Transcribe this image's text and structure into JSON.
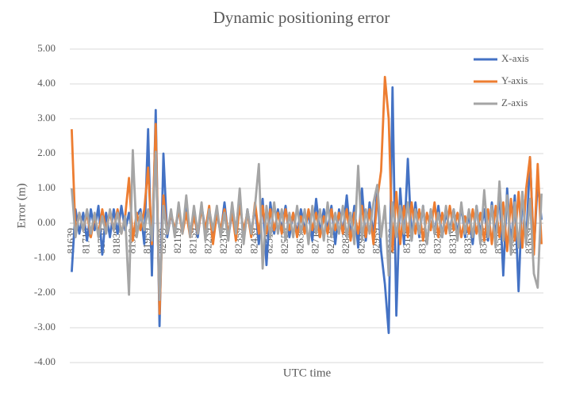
{
  "chart_data": {
    "type": "line",
    "title": "Dynamic positioning error",
    "x_label": "UTC time",
    "y_label": "Error (m)",
    "ylim": [
      -4,
      5
    ],
    "yticks": [
      {
        "value": -4,
        "label": "-4.00"
      },
      {
        "value": -3,
        "label": "-3.00"
      },
      {
        "value": -2,
        "label": "-2.00"
      },
      {
        "value": -1,
        "label": "-1.00"
      },
      {
        "value": 0,
        "label": "0.00"
      },
      {
        "value": 1,
        "label": "1.00"
      },
      {
        "value": 2,
        "label": "2.00"
      },
      {
        "value": 3,
        "label": "3.00"
      },
      {
        "value": 4,
        "label": "4.00"
      },
      {
        "value": 5,
        "label": "5.00"
      }
    ],
    "grid": true,
    "legend": "top-right",
    "categories": [
      "81639",
      null,
      null,
      null,
      "81719",
      null,
      null,
      null,
      "81759",
      null,
      null,
      null,
      "81839",
      null,
      null,
      null,
      "81919",
      null,
      null,
      null,
      "81959",
      null,
      null,
      null,
      "82039",
      null,
      null,
      null,
      "82119",
      null,
      null,
      null,
      "82159",
      null,
      null,
      null,
      "82239",
      null,
      null,
      null,
      "82319",
      null,
      null,
      null,
      "82359",
      null,
      null,
      null,
      "82439",
      null,
      null,
      null,
      "82519",
      null,
      null,
      null,
      "82559",
      null,
      null,
      null,
      "82639",
      null,
      null,
      null,
      "82719",
      null,
      null,
      null,
      "82759",
      null,
      null,
      null,
      "82839",
      null,
      null,
      null,
      "82919",
      null,
      null,
      null,
      "82959",
      null,
      null,
      null,
      "83039",
      null,
      null,
      null,
      "83119",
      null,
      null,
      null,
      "83159",
      null,
      null,
      null,
      "83239",
      null,
      null,
      null,
      "83319",
      null,
      null,
      null,
      "83359",
      null,
      null,
      null,
      "83439",
      null,
      null,
      null,
      "83519",
      null,
      null,
      null,
      "83559",
      null,
      null,
      null,
      "83639",
      null,
      null,
      null
    ],
    "series": [
      {
        "name": "X-axis",
        "color": "#4472c4",
        "values": [
          -1.4,
          0.4,
          -0.3,
          0.3,
          -0.5,
          0.4,
          -0.2,
          0.5,
          -0.9,
          0.3,
          -0.4,
          0.4,
          -0.3,
          0.5,
          -0.2,
          0.3,
          -0.4,
          0.2,
          0.4,
          -0.6,
          2.7,
          -1.5,
          3.25,
          -2.95,
          2.0,
          -0.4,
          0.3,
          -0.3,
          0.4,
          -0.2,
          0.5,
          -0.3,
          0.3,
          -0.4,
          0.5,
          -0.2,
          0.4,
          -0.5,
          0.3,
          -0.3,
          0.6,
          -0.4,
          0.3,
          -0.2,
          0.8,
          -0.5,
          0.4,
          -0.3,
          0.5,
          -0.6,
          0.7,
          -1.2,
          0.6,
          -0.3,
          0.4,
          -0.2,
          0.5,
          -0.4,
          0.3,
          -0.3,
          0.4,
          -0.2,
          0.3,
          -0.5,
          0.7,
          -0.3,
          0.4,
          -0.2,
          0.5,
          -0.6,
          0.4,
          -0.3,
          0.8,
          -0.4,
          0.5,
          -0.7,
          1.0,
          -0.5,
          0.6,
          -0.4,
          1.0,
          -0.8,
          -1.75,
          -3.15,
          3.9,
          -2.65,
          1.0,
          -0.6,
          1.85,
          -0.5,
          0.6,
          -0.4,
          0.5,
          -0.6,
          0.4,
          -0.3,
          0.5,
          -0.4,
          0.3,
          -0.2,
          0.4,
          -0.3,
          0.5,
          -0.4,
          0.3,
          -0.6,
          0.5,
          -0.3,
          0.4,
          -0.5,
          0.6,
          -0.4,
          0.9,
          -1.5,
          1.0,
          -0.7,
          0.8,
          -1.95,
          0.9,
          -0.6,
          1.9,
          -0.8,
          1.2,
          0.1
        ]
      },
      {
        "name": "Y-axis",
        "color": "#ed7d31",
        "values": [
          2.7,
          -0.3,
          0.3,
          -0.2,
          0.3,
          -0.4,
          0.2,
          -0.3,
          0.4,
          -0.2,
          0.3,
          -0.2,
          0.4,
          -0.3,
          0.2,
          1.3,
          -0.5,
          0.3,
          -0.2,
          0.4,
          1.6,
          -0.6,
          2.85,
          -2.6,
          0.8,
          -0.3,
          0.3,
          -0.2,
          0.4,
          -0.3,
          0.3,
          -0.4,
          0.2,
          -0.3,
          0.4,
          -0.2,
          0.5,
          -0.6,
          0.3,
          -0.2,
          0.4,
          -0.3,
          0.3,
          -0.5,
          0.5,
          -0.2,
          0.3,
          -0.4,
          0.6,
          -0.3,
          0.5,
          -0.3,
          0.4,
          -0.2,
          0.3,
          -0.3,
          0.4,
          -0.2,
          0.3,
          -0.4,
          0.2,
          -0.3,
          0.4,
          -0.2,
          0.3,
          -0.4,
          0.2,
          -0.3,
          0.4,
          -0.2,
          0.3,
          -0.3,
          0.4,
          -0.5,
          0.3,
          -0.3,
          0.5,
          -0.4,
          0.4,
          -0.6,
          0.7,
          1.5,
          4.2,
          3.0,
          -0.8,
          0.9,
          -0.6,
          0.5,
          -0.4,
          0.6,
          -0.3,
          0.4,
          -0.5,
          0.3,
          -0.2,
          0.6,
          -0.4,
          0.3,
          -0.3,
          0.5,
          -0.2,
          0.3,
          -0.4,
          0.2,
          -0.3,
          0.4,
          -0.3,
          0.3,
          -0.5,
          0.4,
          -0.6,
          0.5,
          -0.4,
          0.6,
          -0.8,
          0.7,
          -0.5,
          0.9,
          -0.7,
          1.0,
          1.9,
          -0.9,
          1.7,
          -0.6
        ]
      },
      {
        "name": "Z-axis",
        "color": "#a5a5a5",
        "values": [
          1.0,
          -0.4,
          0.3,
          -0.2,
          0.4,
          -0.3,
          0.3,
          -0.4,
          0.2,
          -0.3,
          0.4,
          -0.2,
          0.3,
          -0.3,
          0.2,
          -2.05,
          2.1,
          -0.4,
          0.3,
          -0.2,
          0.4,
          -0.5,
          2.05,
          -2.2,
          0.5,
          -0.3,
          0.4,
          -0.4,
          0.6,
          -0.3,
          0.8,
          -0.4,
          0.5,
          -0.3,
          0.6,
          -0.5,
          0.4,
          -0.2,
          0.5,
          -0.4,
          0.3,
          -0.5,
          0.6,
          -0.3,
          1.0,
          -0.6,
          0.4,
          -0.3,
          0.5,
          1.7,
          -1.3,
          0.5,
          -0.4,
          0.6,
          -0.3,
          0.4,
          -0.5,
          0.3,
          -0.4,
          0.5,
          -0.3,
          0.4,
          -0.6,
          0.5,
          -0.3,
          0.4,
          -0.5,
          0.6,
          -0.4,
          0.3,
          -0.3,
          0.5,
          -0.4,
          0.3,
          -0.6,
          1.65,
          -0.5,
          0.4,
          -0.3,
          0.6,
          1.1,
          -0.4,
          0.5,
          -1.5,
          0.6,
          -0.4,
          0.5,
          -0.3,
          0.6,
          -0.5,
          0.4,
          -0.3,
          0.5,
          -0.6,
          0.4,
          -0.3,
          0.3,
          -0.4,
          0.5,
          -0.3,
          0.4,
          -0.5,
          0.6,
          -0.3,
          0.4,
          -0.4,
          0.5,
          -0.6,
          0.95,
          -0.4,
          0.5,
          -0.7,
          1.2,
          -0.5,
          0.8,
          -0.9,
          0.6,
          -0.7,
          0.9,
          -0.6,
          0.7,
          -1.45,
          -1.85,
          0.85
        ]
      }
    ]
  }
}
